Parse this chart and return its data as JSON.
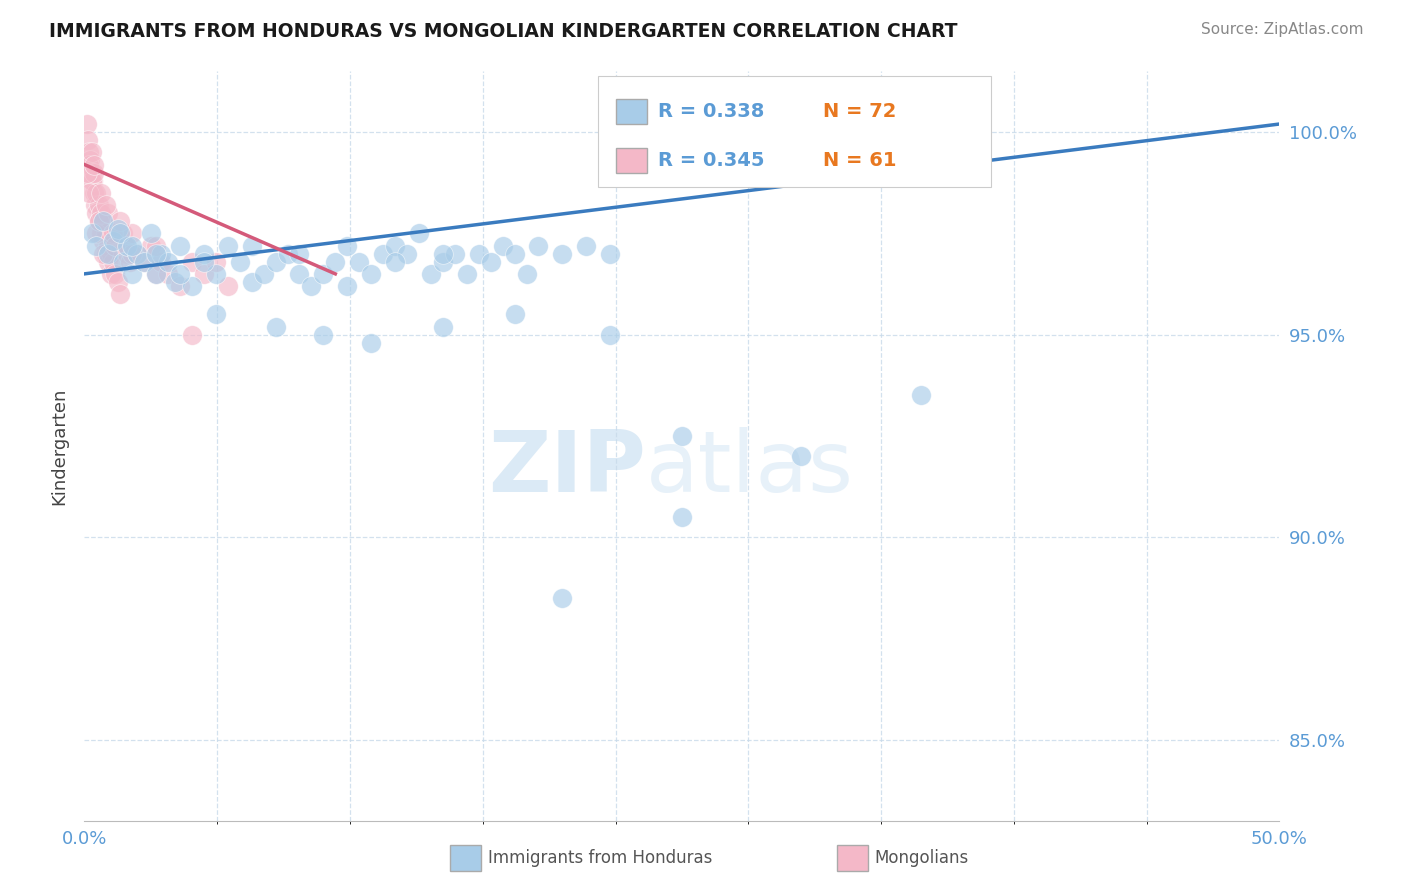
{
  "title": "IMMIGRANTS FROM HONDURAS VS MONGOLIAN KINDERGARTEN CORRELATION CHART",
  "source": "Source: ZipAtlas.com",
  "ylabel": "Kindergarten",
  "xlim": [
    0.0,
    50.0
  ],
  "ylim": [
    83.0,
    101.5
  ],
  "yticks": [
    85.0,
    90.0,
    95.0,
    100.0
  ],
  "ytick_labels": [
    "85.0%",
    "90.0%",
    "95.0%",
    "100.0%"
  ],
  "xtick_labels": [
    "0.0%",
    "50.0%"
  ],
  "legend_r1": "R = 0.338",
  "legend_n1": "N = 72",
  "legend_r2": "R = 0.345",
  "legend_n2": "N = 61",
  "blue_color": "#a8cce8",
  "pink_color": "#f4b8c8",
  "trend_blue": "#3a7bbf",
  "trend_pink": "#d45a7a",
  "axis_label_color": "#5b9bd5",
  "watermark_color": "#d8e8f5",
  "blue_trend_x": [
    0.0,
    50.0
  ],
  "blue_trend_y": [
    96.5,
    100.2
  ],
  "pink_trend_x": [
    0.0,
    10.5
  ],
  "pink_trend_y": [
    99.2,
    96.5
  ],
  "blue_scatter": [
    [
      0.3,
      97.5
    ],
    [
      0.5,
      97.2
    ],
    [
      0.8,
      97.8
    ],
    [
      1.0,
      97.0
    ],
    [
      1.2,
      97.3
    ],
    [
      1.4,
      97.6
    ],
    [
      1.6,
      96.8
    ],
    [
      1.8,
      97.2
    ],
    [
      2.0,
      96.5
    ],
    [
      2.2,
      97.0
    ],
    [
      2.5,
      96.8
    ],
    [
      2.8,
      97.5
    ],
    [
      3.0,
      96.5
    ],
    [
      3.2,
      97.0
    ],
    [
      3.5,
      96.8
    ],
    [
      3.8,
      96.3
    ],
    [
      4.0,
      97.2
    ],
    [
      4.5,
      96.2
    ],
    [
      5.0,
      97.0
    ],
    [
      5.5,
      96.5
    ],
    [
      6.0,
      97.2
    ],
    [
      6.5,
      96.8
    ],
    [
      7.0,
      96.3
    ],
    [
      7.5,
      96.5
    ],
    [
      8.0,
      96.8
    ],
    [
      8.5,
      97.0
    ],
    [
      9.0,
      96.5
    ],
    [
      9.5,
      96.2
    ],
    [
      10.0,
      96.5
    ],
    [
      10.5,
      96.8
    ],
    [
      11.0,
      96.2
    ],
    [
      11.5,
      96.8
    ],
    [
      12.0,
      96.5
    ],
    [
      12.5,
      97.0
    ],
    [
      13.0,
      97.2
    ],
    [
      13.5,
      97.0
    ],
    [
      14.0,
      97.5
    ],
    [
      14.5,
      96.5
    ],
    [
      15.0,
      96.8
    ],
    [
      15.5,
      97.0
    ],
    [
      16.0,
      96.5
    ],
    [
      16.5,
      97.0
    ],
    [
      17.0,
      96.8
    ],
    [
      17.5,
      97.2
    ],
    [
      18.0,
      97.0
    ],
    [
      18.5,
      96.5
    ],
    [
      19.0,
      97.2
    ],
    [
      20.0,
      97.0
    ],
    [
      21.0,
      97.2
    ],
    [
      22.0,
      97.0
    ],
    [
      1.5,
      97.5
    ],
    [
      2.0,
      97.2
    ],
    [
      3.0,
      97.0
    ],
    [
      4.0,
      96.5
    ],
    [
      5.0,
      96.8
    ],
    [
      7.0,
      97.2
    ],
    [
      9.0,
      97.0
    ],
    [
      11.0,
      97.2
    ],
    [
      13.0,
      96.8
    ],
    [
      15.0,
      97.0
    ],
    [
      5.5,
      95.5
    ],
    [
      8.0,
      95.2
    ],
    [
      10.0,
      95.0
    ],
    [
      12.0,
      94.8
    ],
    [
      15.0,
      95.2
    ],
    [
      18.0,
      95.5
    ],
    [
      22.0,
      95.0
    ],
    [
      25.0,
      92.5
    ],
    [
      30.0,
      92.0
    ],
    [
      35.0,
      93.5
    ],
    [
      20.0,
      88.5
    ],
    [
      25.0,
      90.5
    ]
  ],
  "pink_scatter": [
    [
      0.1,
      100.2
    ],
    [
      0.15,
      99.8
    ],
    [
      0.2,
      99.5
    ],
    [
      0.25,
      99.3
    ],
    [
      0.3,
      99.0
    ],
    [
      0.35,
      98.8
    ],
    [
      0.4,
      98.5
    ],
    [
      0.45,
      98.2
    ],
    [
      0.5,
      98.0
    ],
    [
      0.6,
      97.8
    ],
    [
      0.7,
      97.5
    ],
    [
      0.8,
      97.3
    ],
    [
      0.9,
      97.0
    ],
    [
      1.0,
      96.8
    ],
    [
      1.1,
      96.5
    ],
    [
      0.2,
      99.2
    ],
    [
      0.3,
      98.8
    ],
    [
      0.4,
      99.0
    ],
    [
      0.5,
      98.5
    ],
    [
      0.6,
      98.2
    ],
    [
      0.7,
      98.0
    ],
    [
      0.8,
      97.8
    ],
    [
      0.9,
      97.5
    ],
    [
      1.0,
      97.2
    ],
    [
      1.1,
      97.0
    ],
    [
      1.2,
      96.8
    ],
    [
      1.3,
      96.5
    ],
    [
      1.4,
      96.3
    ],
    [
      1.5,
      96.0
    ],
    [
      1.6,
      97.5
    ],
    [
      1.7,
      97.2
    ],
    [
      1.8,
      97.0
    ],
    [
      1.9,
      96.8
    ],
    [
      2.0,
      97.5
    ],
    [
      2.2,
      97.0
    ],
    [
      2.5,
      96.8
    ],
    [
      2.8,
      97.2
    ],
    [
      3.0,
      96.5
    ],
    [
      3.2,
      96.8
    ],
    [
      3.5,
      96.5
    ],
    [
      4.0,
      96.2
    ],
    [
      4.5,
      96.8
    ],
    [
      5.0,
      96.5
    ],
    [
      5.5,
      96.8
    ],
    [
      6.0,
      96.2
    ],
    [
      0.1,
      99.0
    ],
    [
      0.2,
      98.5
    ],
    [
      0.3,
      99.5
    ],
    [
      0.4,
      99.2
    ],
    [
      0.5,
      97.5
    ],
    [
      0.6,
      97.8
    ],
    [
      0.8,
      97.0
    ],
    [
      1.0,
      98.0
    ],
    [
      1.2,
      97.5
    ],
    [
      1.5,
      97.8
    ],
    [
      2.0,
      97.0
    ],
    [
      3.0,
      97.2
    ],
    [
      0.7,
      98.5
    ],
    [
      0.9,
      98.2
    ],
    [
      1.3,
      97.2
    ],
    [
      4.5,
      95.0
    ]
  ]
}
